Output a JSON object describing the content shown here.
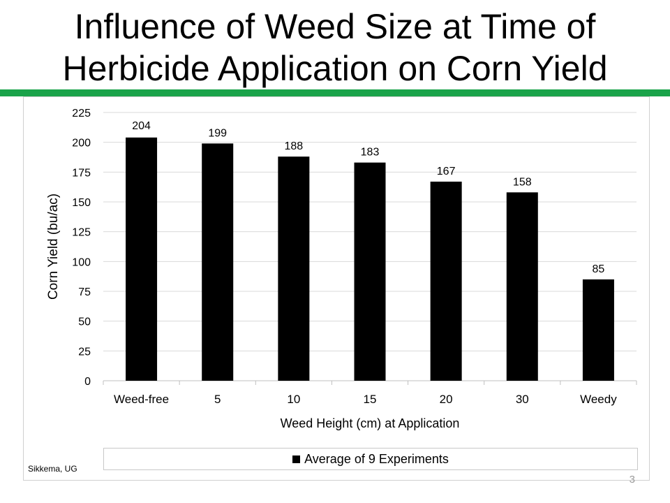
{
  "slide": {
    "title_line1": "Influence of Weed Size at Time of",
    "title_line2": "Herbicide Application on Corn Yield",
    "source": "Sikkema, UG",
    "page_number": "3",
    "accent_color": "#1aa34a"
  },
  "chart_data": {
    "type": "bar",
    "title": "",
    "xlabel": "Weed Height  (cm) at Application",
    "ylabel": "Corn Yield (bu/ac)",
    "categories": [
      "Weed-free",
      "5",
      "10",
      "15",
      "20",
      "30",
      "Weedy"
    ],
    "series": [
      {
        "name": "Average of 9 Experiments",
        "values": [
          204,
          199,
          188,
          183,
          167,
          158,
          85
        ],
        "color": "#000000"
      }
    ],
    "ylim": [
      0,
      225
    ],
    "yticks": [
      0,
      25,
      50,
      75,
      100,
      125,
      150,
      175,
      200,
      225
    ],
    "grid": true,
    "legend_position": "bottom",
    "data_labels": true
  }
}
